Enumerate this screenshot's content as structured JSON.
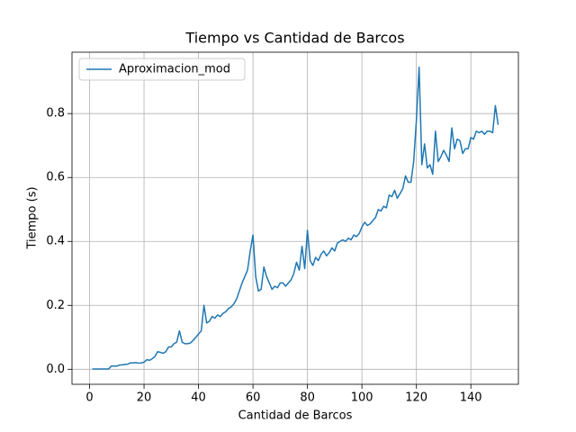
{
  "chart_data": {
    "type": "line",
    "title": "Tiempo vs Cantidad de Barcos",
    "xlabel": "Cantidad de Barcos",
    "ylabel": "Tiempo (s)",
    "x": [
      1,
      2,
      3,
      4,
      5,
      6,
      7,
      8,
      9,
      10,
      11,
      12,
      13,
      14,
      15,
      16,
      17,
      18,
      19,
      20,
      21,
      22,
      23,
      24,
      25,
      26,
      27,
      28,
      29,
      30,
      31,
      32,
      33,
      34,
      35,
      36,
      37,
      38,
      39,
      40,
      41,
      42,
      43,
      44,
      45,
      46,
      47,
      48,
      49,
      50,
      51,
      52,
      53,
      54,
      55,
      56,
      57,
      58,
      59,
      60,
      61,
      62,
      63,
      64,
      65,
      66,
      67,
      68,
      69,
      70,
      71,
      72,
      73,
      74,
      75,
      76,
      77,
      78,
      79,
      80,
      81,
      82,
      83,
      84,
      85,
      86,
      87,
      88,
      89,
      90,
      91,
      92,
      93,
      94,
      95,
      96,
      97,
      98,
      99,
      100,
      101,
      102,
      103,
      104,
      105,
      106,
      107,
      108,
      109,
      110,
      111,
      112,
      113,
      114,
      115,
      116,
      117,
      118,
      119,
      120,
      121,
      122,
      123,
      124,
      125,
      126,
      127,
      128,
      129,
      130,
      131,
      132,
      133,
      134,
      135,
      136,
      137,
      138,
      139,
      140,
      141,
      142,
      143,
      144,
      145,
      146,
      147,
      148,
      149,
      150
    ],
    "series": [
      {
        "name": "Aproximacion_mod",
        "color": "#1f77b4",
        "values": [
          0.001,
          0.001,
          0.001,
          0.001,
          0.001,
          0.001,
          0.001,
          0.01,
          0.01,
          0.01,
          0.013,
          0.014,
          0.015,
          0.016,
          0.02,
          0.02,
          0.021,
          0.019,
          0.02,
          0.022,
          0.03,
          0.028,
          0.033,
          0.04,
          0.055,
          0.053,
          0.05,
          0.055,
          0.07,
          0.07,
          0.08,
          0.085,
          0.12,
          0.085,
          0.08,
          0.08,
          0.082,
          0.09,
          0.1,
          0.11,
          0.12,
          0.2,
          0.145,
          0.15,
          0.165,
          0.16,
          0.17,
          0.165,
          0.175,
          0.18,
          0.19,
          0.195,
          0.205,
          0.22,
          0.245,
          0.27,
          0.29,
          0.31,
          0.37,
          0.42,
          0.29,
          0.245,
          0.25,
          0.32,
          0.29,
          0.27,
          0.25,
          0.26,
          0.255,
          0.27,
          0.27,
          0.26,
          0.27,
          0.28,
          0.3,
          0.335,
          0.31,
          0.385,
          0.315,
          0.435,
          0.34,
          0.325,
          0.35,
          0.34,
          0.36,
          0.37,
          0.355,
          0.365,
          0.38,
          0.37,
          0.395,
          0.4,
          0.405,
          0.4,
          0.41,
          0.405,
          0.42,
          0.415,
          0.425,
          0.445,
          0.46,
          0.45,
          0.455,
          0.465,
          0.475,
          0.5,
          0.495,
          0.51,
          0.505,
          0.545,
          0.54,
          0.56,
          0.535,
          0.55,
          0.565,
          0.605,
          0.585,
          0.585,
          0.65,
          0.78,
          0.945,
          0.64,
          0.705,
          0.63,
          0.64,
          0.61,
          0.745,
          0.65,
          0.665,
          0.685,
          0.67,
          0.65,
          0.755,
          0.69,
          0.72,
          0.715,
          0.675,
          0.69,
          0.69,
          0.725,
          0.72,
          0.745,
          0.74,
          0.745,
          0.735,
          0.745,
          0.745,
          0.74,
          0.825,
          0.765
        ]
      }
    ],
    "xlim": [
      -6.45,
      157.45
    ],
    "ylim": [
      -0.047,
      0.992
    ],
    "xticks": [
      0,
      20,
      40,
      60,
      80,
      100,
      120,
      140
    ],
    "yticks": [
      {
        "value": 0,
        "label": "0.0"
      },
      0.2,
      0.4,
      0.6,
      0.8
    ],
    "grid": true,
    "legend": "upper-left"
  }
}
